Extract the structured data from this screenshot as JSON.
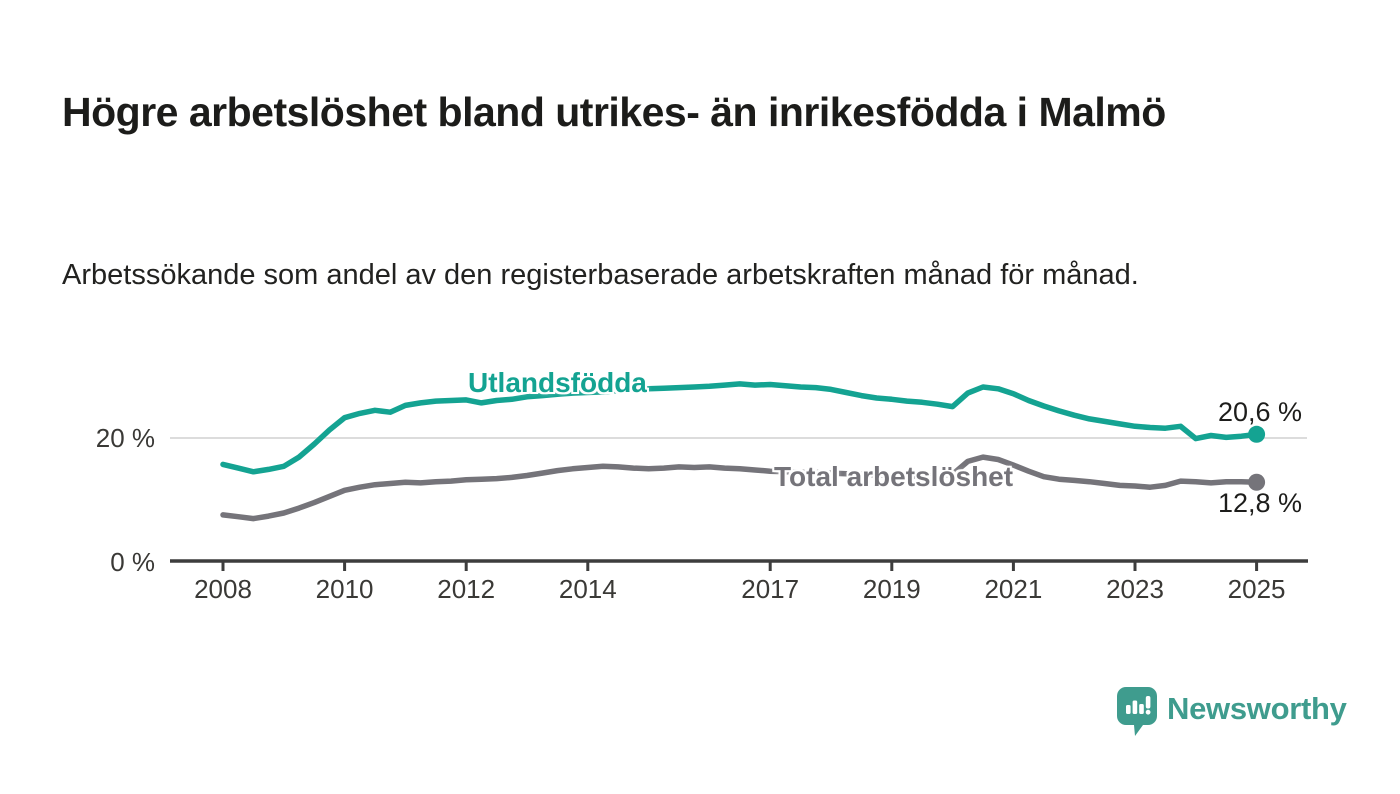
{
  "header": {
    "title": "Högre arbetslöshet bland utrikes- än inrikesfödda i Malmö",
    "subtitle": "Arbetssökande som andel av den registerbaserade arbetskraften månad för månad."
  },
  "chart_data": {
    "type": "line",
    "title": "Högre arbetslöshet bland utrikes- än inrikesfödda i Malmö",
    "subtitle": "Arbetssökande som andel av den registerbaserade arbetskraften månad för månad.",
    "x_start_year": 2008,
    "x_step_years": 0.25,
    "xlim": [
      2007.1,
      2025.8
    ],
    "ylim": [
      0,
      30
    ],
    "grid_y_values": [
      20
    ],
    "y_ticks": [
      {
        "value": 20,
        "label": "20 %"
      },
      {
        "value": 0,
        "label": "0 %"
      }
    ],
    "x_ticks": [
      {
        "year": 2008,
        "label": "2008"
      },
      {
        "year": 2010,
        "label": "2010"
      },
      {
        "year": 2012,
        "label": "2012"
      },
      {
        "year": 2014,
        "label": "2014"
      },
      {
        "year": 2017,
        "label": "2017"
      },
      {
        "year": 2019,
        "label": "2019"
      },
      {
        "year": 2021,
        "label": "2021"
      },
      {
        "year": 2023,
        "label": "2023"
      },
      {
        "year": 2025,
        "label": "2025"
      }
    ],
    "series": [
      {
        "name": "Utlandsfödda",
        "color": "#14a392",
        "end_value": 20.6,
        "end_label": "20,6 %",
        "values": [
          15.7,
          15.1,
          14.5,
          14.9,
          15.4,
          16.9,
          19.0,
          21.3,
          23.3,
          24.0,
          24.5,
          24.2,
          25.3,
          25.7,
          26.0,
          26.1,
          26.2,
          25.7,
          26.1,
          26.3,
          26.7,
          26.9,
          27.1,
          27.3,
          27.4,
          27.5,
          27.7,
          27.8,
          28.0,
          28.1,
          28.2,
          28.3,
          28.4,
          28.6,
          28.8,
          28.6,
          28.7,
          28.5,
          28.3,
          28.2,
          27.9,
          27.4,
          26.9,
          26.5,
          26.3,
          26.0,
          25.8,
          25.5,
          25.1,
          27.3,
          28.3,
          28.0,
          27.2,
          26.1,
          25.2,
          24.4,
          23.7,
          23.1,
          22.7,
          22.3,
          21.9,
          21.7,
          21.6,
          21.9,
          19.9,
          20.4,
          20.1,
          20.3,
          20.6
        ]
      },
      {
        "name": "Total arbetslöshet",
        "color": "#75747a",
        "end_value": 12.8,
        "end_label": "12,8 %",
        "values": [
          7.5,
          7.2,
          6.9,
          7.3,
          7.8,
          8.6,
          9.5,
          10.5,
          11.5,
          12.0,
          12.4,
          12.6,
          12.8,
          12.7,
          12.9,
          13.0,
          13.2,
          13.3,
          13.4,
          13.6,
          13.9,
          14.3,
          14.7,
          15.0,
          15.2,
          15.4,
          15.3,
          15.1,
          15.0,
          15.1,
          15.3,
          15.2,
          15.3,
          15.1,
          15.0,
          14.8,
          14.6,
          14.5,
          14.4,
          14.4,
          14.3,
          14.2,
          14.1,
          14.0,
          13.9,
          13.8,
          13.8,
          13.9,
          14.1,
          16.2,
          16.9,
          16.5,
          15.6,
          14.6,
          13.7,
          13.3,
          13.1,
          12.9,
          12.6,
          12.3,
          12.2,
          12.0,
          12.3,
          13.0,
          12.9,
          12.7,
          12.9,
          12.9,
          12.8
        ]
      }
    ],
    "legend_position": "inline-labels",
    "grid": "horizontal, 20 % only",
    "colors": {
      "grid_line": "#dcdcdc",
      "axis_line": "#3d3d3d",
      "tick_text": "#3a3936",
      "text_dark": "#1d1d1b"
    }
  },
  "branding": {
    "logo_text": "Newsworthy",
    "logo_color": "#3f9c8e",
    "logo_icon": "speech-bubble-bar-chart-exclamation"
  }
}
